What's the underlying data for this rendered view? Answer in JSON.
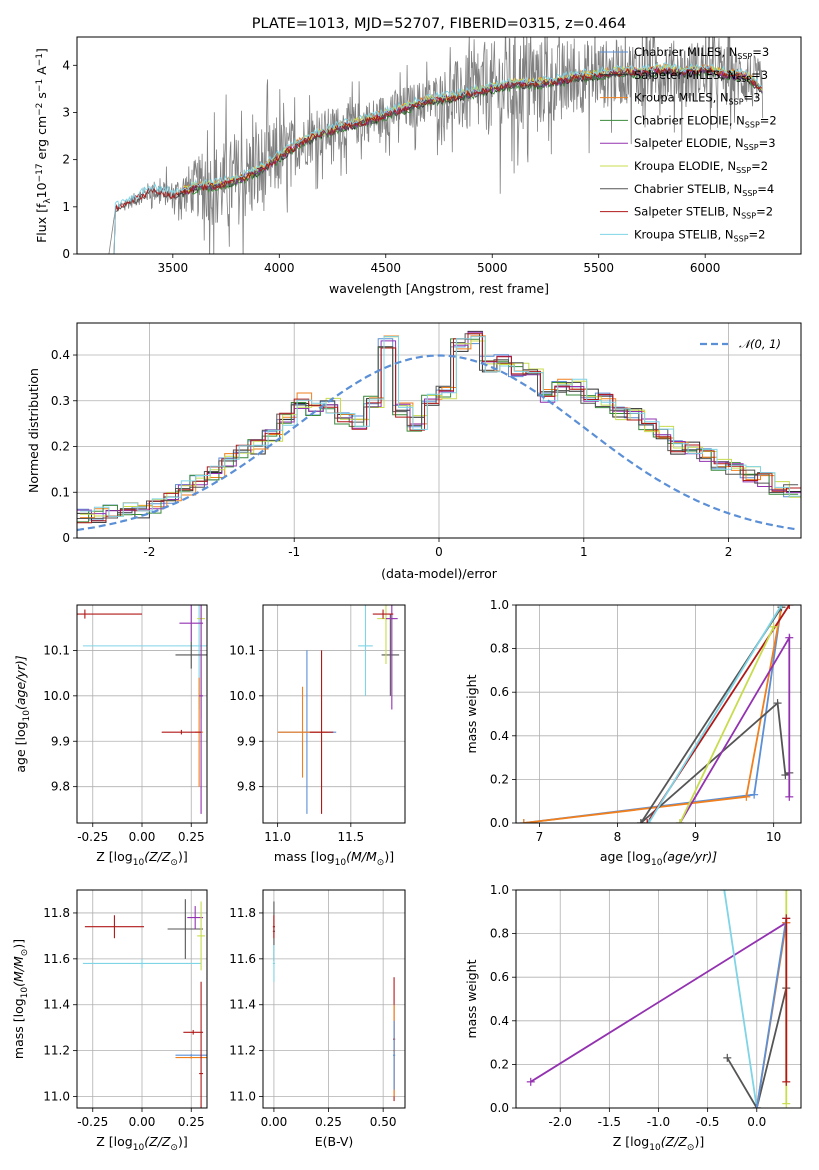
{
  "figure_title": "PLATE=1013, MJD=52707, FIBERID=0315, z=0.464",
  "colors": {
    "Chabrier MILES": "#5b8fd6",
    "Salpeter MILES": "#2d2d2d",
    "Kroupa MILES": "#f07f1e",
    "Chabrier ELODIE": "#3a8a3a",
    "Salpeter ELODIE": "#9332b0",
    "Kroupa ELODIE": "#c8dc4e",
    "Chabrier STELIB": "#555555",
    "Salpeter STELIB": "#b01818",
    "Kroupa STELIB": "#7fd4e6",
    "gaussian": "#5b8fd6",
    "data": "#808080"
  },
  "chart_data": [
    {
      "id": "spectrum",
      "type": "line",
      "title": "PLATE=1013, MJD=52707, FIBERID=0315, z=0.464",
      "xlabel": "wavelength [Angstrom, rest frame]",
      "ylabel": "Flux [f",
      "xlim": [
        3050,
        6450
      ],
      "ylim": [
        0,
        4.6
      ],
      "xticks": [
        3500,
        4000,
        4500,
        5000,
        5500,
        6000
      ],
      "yticks": [
        0,
        1,
        2,
        3,
        4
      ],
      "grid": false,
      "legend_position": "upper-right",
      "legend": [
        {
          "label": "Chabrier MILES, N",
          "n": "3",
          "color_key": "Chabrier MILES"
        },
        {
          "label": "Salpeter MILES, N",
          "n": "3",
          "color_key": "Salpeter MILES"
        },
        {
          "label": "Kroupa MILES, N",
          "n": "3",
          "color_key": "Kroupa MILES"
        },
        {
          "label": "Chabrier ELODIE, N",
          "n": "2",
          "color_key": "Chabrier ELODIE"
        },
        {
          "label": "Salpeter ELODIE, N",
          "n": "3",
          "color_key": "Salpeter ELODIE"
        },
        {
          "label": "Kroupa ELODIE, N",
          "n": "2",
          "color_key": "Kroupa ELODIE"
        },
        {
          "label": "Chabrier STELIB, N",
          "n": "4",
          "color_key": "Chabrier STELIB"
        },
        {
          "label": "Salpeter STELIB, N",
          "n": "2",
          "color_key": "Salpeter STELIB"
        },
        {
          "label": "Kroupa STELIB, N",
          "n": "2",
          "color_key": "Kroupa STELIB"
        }
      ],
      "model_continuum": {
        "x": [
          3200,
          3230,
          3300,
          3400,
          3500,
          3600,
          3700,
          3800,
          3900,
          4000,
          4100,
          4200,
          4300,
          4400,
          4500,
          4600,
          4700,
          4800,
          4900,
          5000,
          5100,
          5200,
          5300,
          5400,
          5500,
          5600,
          5700,
          5800,
          5900,
          6000,
          6100,
          6200,
          6270
        ],
        "y": [
          0.0,
          0.95,
          1.1,
          1.35,
          1.25,
          1.4,
          1.45,
          1.55,
          1.75,
          2.05,
          2.35,
          2.55,
          2.7,
          2.8,
          2.95,
          3.1,
          3.25,
          3.3,
          3.4,
          3.5,
          3.6,
          3.6,
          3.65,
          3.75,
          3.8,
          3.85,
          3.85,
          3.9,
          3.85,
          3.9,
          3.8,
          3.75,
          3.45
        ]
      },
      "data_noise_scale": {
        "x": [
          3200,
          3500,
          3700,
          3900,
          4100,
          4400,
          4700,
          4900,
          5100,
          5300,
          5600,
          6000,
          6270
        ],
        "y": [
          0.05,
          0.3,
          0.9,
          1.0,
          0.55,
          0.45,
          0.5,
          0.9,
          1.1,
          0.85,
          0.7,
          0.65,
          0.6
        ]
      }
    },
    {
      "id": "residual-histogram",
      "type": "bar",
      "xlabel": "(data-model)/error",
      "ylabel": "Normed distribution",
      "xlim": [
        -2.5,
        2.5
      ],
      "ylim": [
        0,
        0.47
      ],
      "xticks": [
        -2,
        -1,
        0,
        1,
        2
      ],
      "yticks": [
        0.0,
        0.1,
        0.2,
        0.3,
        0.4
      ],
      "grid": true,
      "legend_position": "upper-right",
      "legend": [
        {
          "label": "𝒩(0, 1)",
          "color_key": "gaussian",
          "style": "dashed"
        }
      ],
      "bin_width": 0.1,
      "bin_start": -2.5,
      "base_density": [
        0.05,
        0.05,
        0.06,
        0.06,
        0.06,
        0.07,
        0.09,
        0.11,
        0.12,
        0.14,
        0.17,
        0.19,
        0.2,
        0.22,
        0.26,
        0.3,
        0.28,
        0.29,
        0.26,
        0.25,
        0.3,
        0.43,
        0.28,
        0.25,
        0.3,
        0.32,
        0.42,
        0.44,
        0.38,
        0.39,
        0.37,
        0.36,
        0.31,
        0.33,
        0.33,
        0.31,
        0.3,
        0.27,
        0.27,
        0.25,
        0.23,
        0.2,
        0.2,
        0.18,
        0.16,
        0.15,
        0.14,
        0.13,
        0.11,
        0.1
      ]
    },
    {
      "id": "age-vs-metallicity",
      "type": "scatter",
      "xlabel": "Z [log",
      "xlabel_unit": "(Z/Z",
      "ylabel": "age  [log",
      "ylabel_unit": "(age/yr)]",
      "xlim": [
        -0.33,
        0.33
      ],
      "ylim": [
        9.72,
        10.2
      ],
      "xticks": [
        "-0.25",
        "0.00",
        "0.25"
      ],
      "yticks": [
        "9.8",
        "9.9",
        "10.0",
        "10.1"
      ],
      "grid": true,
      "points": [
        {
          "x": 0.29,
          "y": 10.11,
          "xerr": 0.59,
          "yerr": 0.14,
          "color_key": "Kroupa STELIB"
        },
        {
          "x": 0.3,
          "y": 10.17,
          "xerr": 0.02,
          "yerr": 0.22,
          "color_key": "Kroupa ELODIE"
        },
        {
          "x": 0.25,
          "y": 10.09,
          "xerr": 0.08,
          "yerr": 0.03,
          "color_key": "Chabrier STELIB"
        },
        {
          "x": 0.25,
          "y": 10.16,
          "xerr": 0.06,
          "yerr": 0.04,
          "color_key": "Salpeter ELODIE"
        },
        {
          "x": 0.29,
          "y": 9.92,
          "xerr": 0.02,
          "yerr": 0.12,
          "color_key": "Kroupa MILES"
        },
        {
          "x": 0.3,
          "y": 10.0,
          "xerr": 0.01,
          "yerr": 0.26,
          "color_key": "Salpeter ELODIE"
        },
        {
          "x": -0.29,
          "y": 10.18,
          "xerr": 0.29,
          "yerr": 0.01,
          "color_key": "Salpeter STELIB"
        },
        {
          "x": 0.2,
          "y": 9.92,
          "xerr": 0.1,
          "yerr": 0.005,
          "color_key": "Salpeter STELIB"
        }
      ]
    },
    {
      "id": "age-vs-mass",
      "type": "scatter",
      "xlabel": "mass [log",
      "xlabel_unit": "(M/M",
      "ylabel": "",
      "xlim": [
        10.9,
        11.87
      ],
      "ylim": [
        9.72,
        10.2
      ],
      "xticks": [
        "11.0",
        "11.5"
      ],
      "yticks": [
        "9.8",
        "9.9",
        "10.0",
        "10.1"
      ],
      "grid": true,
      "points": [
        {
          "x": 11.2,
          "y": 9.92,
          "xerr": 0.2,
          "yerr": 0.18,
          "color_key": "Chabrier MILES"
        },
        {
          "x": 11.17,
          "y": 9.92,
          "xerr": 0.17,
          "yerr": 0.1,
          "color_key": "Kroupa MILES"
        },
        {
          "x": 11.3,
          "y": 9.92,
          "xerr": 0.08,
          "yerr": 0.18,
          "color_key": "Salpeter STELIB"
        },
        {
          "x": 11.6,
          "y": 10.11,
          "xerr": 0.05,
          "yerr": 0.11,
          "color_key": "Kroupa STELIB"
        },
        {
          "x": 11.77,
          "y": 10.09,
          "xerr": 0.06,
          "yerr": 0.09,
          "color_key": "Chabrier STELIB"
        },
        {
          "x": 11.74,
          "y": 10.17,
          "xerr": 0.06,
          "yerr": 0.1,
          "color_key": "Kroupa ELODIE"
        },
        {
          "x": 11.78,
          "y": 10.17,
          "xerr": 0.04,
          "yerr": 0.2,
          "color_key": "Salpeter ELODIE"
        },
        {
          "x": 11.72,
          "y": 10.18,
          "xerr": 0.07,
          "yerr": 0.01,
          "color_key": "Salpeter STELIB"
        }
      ]
    },
    {
      "id": "mass-weight-vs-age",
      "type": "line",
      "xlabel": "age  [log",
      "xlabel_unit": "(age/yr)]",
      "ylabel": "mass weight",
      "xlim": [
        6.7,
        10.35
      ],
      "ylim": [
        0,
        1.0
      ],
      "xticks": [
        "7",
        "8",
        "9",
        "10"
      ],
      "yticks": [
        "0.0",
        "0.2",
        "0.4",
        "0.6",
        "0.8",
        "1.0"
      ],
      "grid": true,
      "series": [
        {
          "color_key": "Chabrier MILES",
          "x": [
            6.8,
            9.75,
            10.1
          ],
          "y": [
            0.0,
            0.13,
            1.0
          ]
        },
        {
          "color_key": "Kroupa MILES",
          "x": [
            6.8,
            9.65,
            10.1
          ],
          "y": [
            0.0,
            0.12,
            0.99
          ]
        },
        {
          "color_key": "Chabrier STELIB",
          "x": [
            8.3,
            10.05,
            10.15,
            10.2
          ],
          "y": [
            0.0,
            0.55,
            0.22,
            0.23
          ]
        },
        {
          "color_key": "Chabrier STELIB",
          "x": [
            8.3,
            10.1
          ],
          "y": [
            0.0,
            0.99
          ]
        },
        {
          "color_key": "Salpeter STELIB",
          "x": [
            8.38,
            10.2
          ],
          "y": [
            0.0,
            1.0
          ]
        },
        {
          "color_key": "Kroupa STELIB",
          "x": [
            8.4,
            10.1
          ],
          "y": [
            0.0,
            1.0
          ]
        },
        {
          "color_key": "Salpeter ELODIE",
          "x": [
            8.8,
            10.2,
            10.2
          ],
          "y": [
            0.0,
            0.85,
            0.12
          ]
        },
        {
          "color_key": "Kroupa ELODIE",
          "x": [
            8.8,
            10.0
          ],
          "y": [
            0.0,
            0.9
          ]
        }
      ]
    },
    {
      "id": "mass-vs-metallicity",
      "type": "scatter",
      "xlabel": "Z [log",
      "xlabel_unit": "(Z/Z",
      "ylabel": "mass [log",
      "ylabel_unit": "(M/M",
      "xlim": [
        -0.33,
        0.33
      ],
      "ylim": [
        10.95,
        11.9
      ],
      "xticks": [
        "-0.25",
        "0.00",
        "0.25"
      ],
      "yticks": [
        "11.0",
        "11.2",
        "11.4",
        "11.6",
        "11.8"
      ],
      "grid": true,
      "points": [
        {
          "x": -0.14,
          "y": 11.74,
          "xerr": 0.15,
          "yerr": 0.05,
          "color_key": "Salpeter STELIB"
        },
        {
          "x": 0.0,
          "y": 11.58,
          "xerr": 0.3,
          "yerr": 0.02,
          "color_key": "Kroupa STELIB"
        },
        {
          "x": 0.22,
          "y": 11.73,
          "xerr": 0.09,
          "yerr": 0.13,
          "color_key": "Chabrier STELIB"
        },
        {
          "x": 0.27,
          "y": 11.78,
          "xerr": 0.04,
          "yerr": 0.05,
          "color_key": "Salpeter ELODIE"
        },
        {
          "x": 0.3,
          "y": 11.7,
          "xerr": 0.02,
          "yerr": 0.15,
          "color_key": "Kroupa ELODIE"
        },
        {
          "x": 0.26,
          "y": 11.28,
          "xerr": 0.05,
          "yerr": 0.01,
          "color_key": "Salpeter STELIB"
        },
        {
          "x": 0.25,
          "y": 11.18,
          "xerr": 0.08,
          "yerr": 0.005,
          "color_key": "Chabrier MILES"
        },
        {
          "x": 0.25,
          "y": 11.17,
          "xerr": 0.08,
          "yerr": 0.005,
          "color_key": "Kroupa MILES"
        },
        {
          "x": 0.3,
          "y": 11.1,
          "xerr": 0.01,
          "yerr": 0.4,
          "color_key": "Salpeter STELIB"
        }
      ]
    },
    {
      "id": "mass-vs-extinction",
      "type": "scatter",
      "xlabel": "E(B-V)",
      "ylabel": "",
      "xlim": [
        -0.05,
        0.6
      ],
      "ylim": [
        10.95,
        11.9
      ],
      "xticks": [
        "0.00",
        "0.25",
        "0.50"
      ],
      "yticks": [
        "11.0",
        "11.2",
        "11.4",
        "11.6",
        "11.8"
      ],
      "grid": true,
      "points": [
        {
          "x": 0.0,
          "y": 11.72,
          "xerr": 0.005,
          "yerr": 0.13,
          "color_key": "Chabrier STELIB"
        },
        {
          "x": 0.0,
          "y": 11.58,
          "xerr": 0.005,
          "yerr": 0.08,
          "color_key": "Kroupa STELIB"
        },
        {
          "x": 0.0,
          "y": 11.74,
          "xerr": 0.005,
          "yerr": 0.05,
          "color_key": "Salpeter STELIB"
        },
        {
          "x": 0.55,
          "y": 11.25,
          "xerr": 0.005,
          "yerr": 0.27,
          "color_key": "Salpeter STELIB"
        },
        {
          "x": 0.55,
          "y": 11.2,
          "xerr": 0.005,
          "yerr": 0.2,
          "color_key": "Kroupa MILES"
        },
        {
          "x": 0.55,
          "y": 11.18,
          "xerr": 0.005,
          "yerr": 0.15,
          "color_key": "Chabrier MILES"
        }
      ]
    },
    {
      "id": "mass-weight-vs-metallicity",
      "type": "line",
      "xlabel": "Z [log",
      "xlabel_unit": "(Z/Z",
      "ylabel": "mass weight",
      "xlim": [
        -2.45,
        0.45
      ],
      "ylim": [
        0,
        1.0
      ],
      "xticks": [
        "-2.0",
        "-1.5",
        "-1.0",
        "-0.5",
        "0.0"
      ],
      "yticks": [
        "0.0",
        "0.2",
        "0.4",
        "0.6",
        "0.8",
        "1.0"
      ],
      "grid": true,
      "series": [
        {
          "color_key": "Salpeter ELODIE",
          "x": [
            -2.3,
            0.3
          ],
          "y": [
            0.12,
            0.85
          ]
        },
        {
          "color_key": "Kroupa STELIB",
          "x": [
            -0.33,
            0.0
          ],
          "y": [
            1.0,
            0.0
          ]
        },
        {
          "color_key": "Chabrier STELIB",
          "x": [
            -0.3,
            0.0,
            0.3
          ],
          "y": [
            0.23,
            0.0,
            0.55
          ]
        },
        {
          "color_key": "Kroupa MILES",
          "x": [
            0.0,
            0.3
          ],
          "y": [
            0.0,
            0.85
          ]
        },
        {
          "color_key": "Chabrier MILES",
          "x": [
            0.0,
            0.3
          ],
          "y": [
            0.0,
            0.87
          ]
        },
        {
          "color_key": "Kroupa ELODIE",
          "x": [
            0.3,
            0.3
          ],
          "y": [
            0.02,
            1.0
          ]
        },
        {
          "color_key": "Salpeter STELIB",
          "x": [
            0.3,
            0.3
          ],
          "y": [
            0.12,
            0.87
          ]
        }
      ]
    }
  ]
}
